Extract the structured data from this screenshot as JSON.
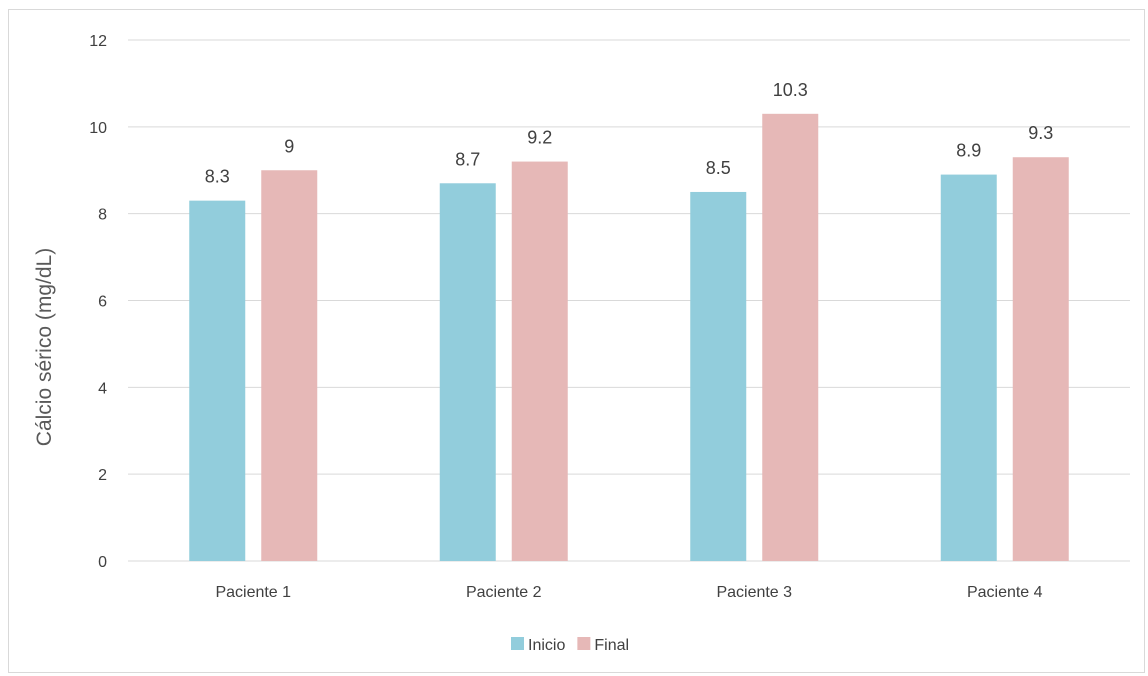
{
  "chart_data": {
    "type": "bar",
    "title": "",
    "xlabel": "",
    "ylabel": "Cálcio sérico (mg/dL)",
    "ylim": [
      0,
      12
    ],
    "yticks": [
      0,
      2,
      4,
      6,
      8,
      10,
      12
    ],
    "grid": true,
    "legend_position": "bottom",
    "categories": [
      "Paciente 1",
      "Paciente 2",
      "Paciente 3",
      "Paciente 4"
    ],
    "series": [
      {
        "name": "Inicio",
        "color": "#92CDDC",
        "values": [
          8.3,
          8.7,
          8.5,
          8.9
        ]
      },
      {
        "name": "Final",
        "color": "#E6B8B7",
        "values": [
          9,
          9.2,
          10.3,
          9.3
        ]
      }
    ]
  }
}
